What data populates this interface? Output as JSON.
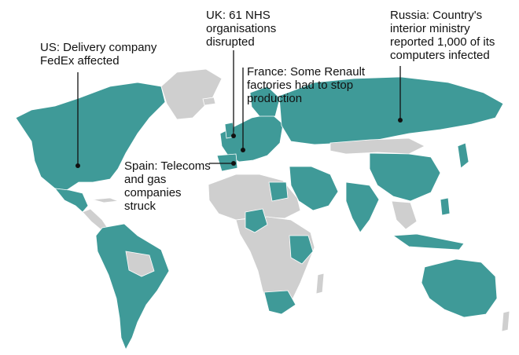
{
  "map": {
    "colors": {
      "affected": "#3f9a98",
      "unaffected": "#cfcfcf",
      "border": "#ffffff",
      "background": "#ffffff",
      "annotation": "#111111"
    },
    "legend_note": "",
    "annotations": [
      {
        "id": "us",
        "text": "US: Delivery company\nFedEx affected"
      },
      {
        "id": "uk",
        "text": "UK: 61 NHS\norganisations\ndisrupted"
      },
      {
        "id": "france",
        "text": "France: Some Renault\nfactories had to stop\nproduction"
      },
      {
        "id": "spain",
        "text": "Spain: Telecoms\nand gas\ncompanies\nstruck"
      },
      {
        "id": "russia",
        "text": "Russia: Country's\ninterior ministry\nreported 1,000 of its\ncomputers infected"
      }
    ]
  }
}
